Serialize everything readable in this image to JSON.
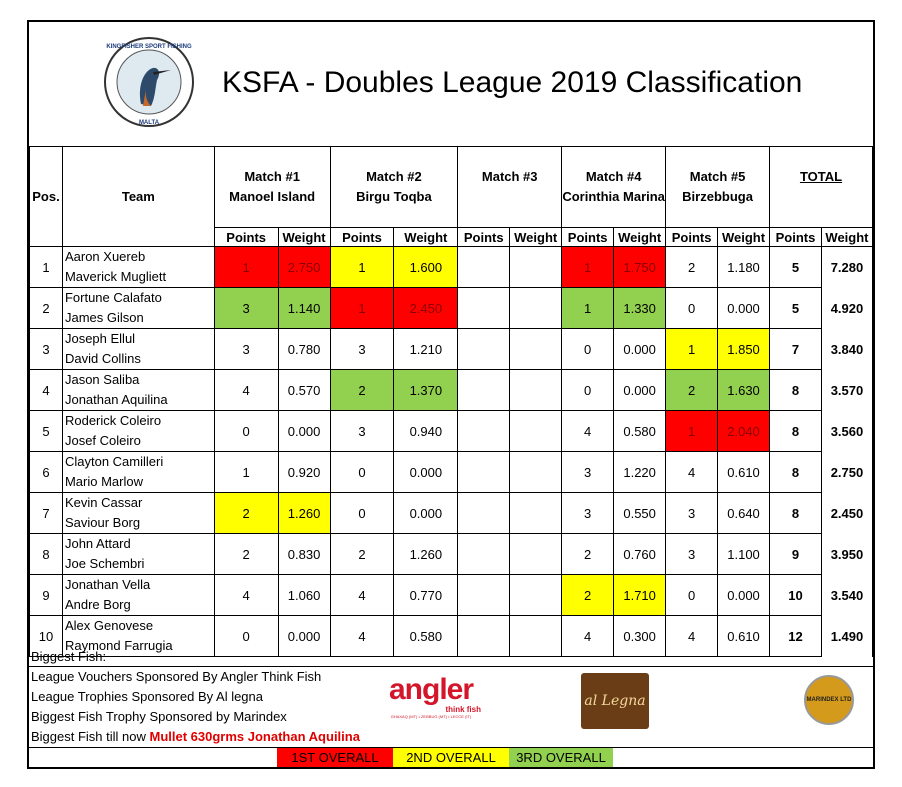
{
  "title": "KSFA - Doubles League 2019 Classification",
  "logo_text": "KINGFISHER SPORT FISHING ASSOC MALTA",
  "headers": {
    "pos": "Pos.",
    "team": "Team",
    "matches": [
      {
        "name": "Match #1",
        "venue": "Manoel Island"
      },
      {
        "name": "Match #2",
        "venue": "Birgu Toqba"
      },
      {
        "name": "Match #3",
        "venue": ""
      },
      {
        "name": "Match #4",
        "venue": "Corinthia Marina"
      },
      {
        "name": "Match #5",
        "venue": "Birzebbuga"
      }
    ],
    "total": "TOTAL",
    "points": "Points",
    "weight": "Weight"
  },
  "rows": [
    {
      "pos": "1",
      "team": [
        "Aaron Xuereb",
        "Maverick Mugliett"
      ],
      "matches": [
        [
          "1",
          "2.750",
          "red"
        ],
        [
          "1",
          "1.600",
          "yellow"
        ],
        [
          "",
          "",
          ""
        ],
        [
          "1",
          "1.750",
          "red"
        ],
        [
          "2",
          "1.180",
          ""
        ]
      ],
      "total_points": "5",
      "total_weight": "7.280"
    },
    {
      "pos": "2",
      "team": [
        "Fortune Calafato",
        "James Gilson"
      ],
      "matches": [
        [
          "3",
          "1.140",
          "green"
        ],
        [
          "1",
          "2.450",
          "red"
        ],
        [
          "",
          "",
          ""
        ],
        [
          "1",
          "1.330",
          "green"
        ],
        [
          "0",
          "0.000",
          ""
        ]
      ],
      "total_points": "5",
      "total_weight": "4.920"
    },
    {
      "pos": "3",
      "team": [
        "Joseph Ellul",
        "David Collins"
      ],
      "matches": [
        [
          "3",
          "0.780",
          ""
        ],
        [
          "3",
          "1.210",
          ""
        ],
        [
          "",
          "",
          ""
        ],
        [
          "0",
          "0.000",
          ""
        ],
        [
          "1",
          "1.850",
          "yellow"
        ]
      ],
      "total_points": "7",
      "total_weight": "3.840"
    },
    {
      "pos": "4",
      "team": [
        "Jason Saliba",
        "Jonathan Aquilina"
      ],
      "matches": [
        [
          "4",
          "0.570",
          ""
        ],
        [
          "2",
          "1.370",
          "green"
        ],
        [
          "",
          "",
          ""
        ],
        [
          "0",
          "0.000",
          ""
        ],
        [
          "2",
          "1.630",
          "green"
        ]
      ],
      "total_points": "8",
      "total_weight": "3.570"
    },
    {
      "pos": "5",
      "team": [
        "Roderick Coleiro",
        "Josef Coleiro"
      ],
      "matches": [
        [
          "0",
          "0.000",
          ""
        ],
        [
          "3",
          "0.940",
          ""
        ],
        [
          "",
          "",
          ""
        ],
        [
          "4",
          "0.580",
          ""
        ],
        [
          "1",
          "2.040",
          "red"
        ]
      ],
      "total_points": "8",
      "total_weight": "3.560"
    },
    {
      "pos": "6",
      "team": [
        "Clayton Camilleri",
        "Mario Marlow"
      ],
      "matches": [
        [
          "1",
          "0.920",
          ""
        ],
        [
          "0",
          "0.000",
          ""
        ],
        [
          "",
          "",
          ""
        ],
        [
          "3",
          "1.220",
          ""
        ],
        [
          "4",
          "0.610",
          ""
        ]
      ],
      "total_points": "8",
      "total_weight": "2.750"
    },
    {
      "pos": "7",
      "team": [
        "Kevin Cassar",
        "Saviour Borg"
      ],
      "matches": [
        [
          "2",
          "1.260",
          "yellow"
        ],
        [
          "0",
          "0.000",
          ""
        ],
        [
          "",
          "",
          ""
        ],
        [
          "3",
          "0.550",
          ""
        ],
        [
          "3",
          "0.640",
          ""
        ]
      ],
      "total_points": "8",
      "total_weight": "2.450"
    },
    {
      "pos": "8",
      "team": [
        "John Attard",
        "Joe Schembri"
      ],
      "matches": [
        [
          "2",
          "0.830",
          ""
        ],
        [
          "2",
          "1.260",
          ""
        ],
        [
          "",
          "",
          ""
        ],
        [
          "2",
          "0.760",
          ""
        ],
        [
          "3",
          "1.100",
          ""
        ]
      ],
      "total_points": "9",
      "total_weight": "3.950"
    },
    {
      "pos": "9",
      "team": [
        "Jonathan Vella",
        "Andre Borg"
      ],
      "matches": [
        [
          "4",
          "1.060",
          ""
        ],
        [
          "4",
          "0.770",
          ""
        ],
        [
          "",
          "",
          ""
        ],
        [
          "2",
          "1.710",
          "yellow"
        ],
        [
          "0",
          "0.000",
          ""
        ]
      ],
      "total_points": "10",
      "total_weight": "3.540"
    },
    {
      "pos": "10",
      "team": [
        "Alex Genovese",
        "Raymond Farrugia"
      ],
      "matches": [
        [
          "0",
          "0.000",
          ""
        ],
        [
          "4",
          "0.580",
          ""
        ],
        [
          "",
          "",
          ""
        ],
        [
          "4",
          "0.300",
          ""
        ],
        [
          "4",
          "0.610",
          ""
        ]
      ],
      "total_points": "12",
      "total_weight": "1.490"
    }
  ],
  "footer": {
    "biggest_fish_label": "Biggest Fish:",
    "line1": "League Vouchers Sponsored By Angler Think Fish",
    "line2": "League Trophies Sponsored By Al legna",
    "line3": "Biggest Fish Trophy Sponsored by Marindex",
    "line4_prefix": "Biggest Fish till now ",
    "line4_highlight": "Mullet 630grms Jonathan Aquilina",
    "angler_logo": "angler",
    "angler_tag": "think fish",
    "angler_locations": "GHAXAQ (MT) • ZEBBUG (MT) • LECCE (IT)",
    "allegna_logo": "al Legna",
    "marindex_logo": "MARINDEX LTD"
  },
  "legend": [
    {
      "label": "1ST OVERALL",
      "color": "#ff0000"
    },
    {
      "label": "2ND OVERALL",
      "color": "#ffff00"
    },
    {
      "label": "3RD OVERALL",
      "color": "#92d050"
    }
  ]
}
